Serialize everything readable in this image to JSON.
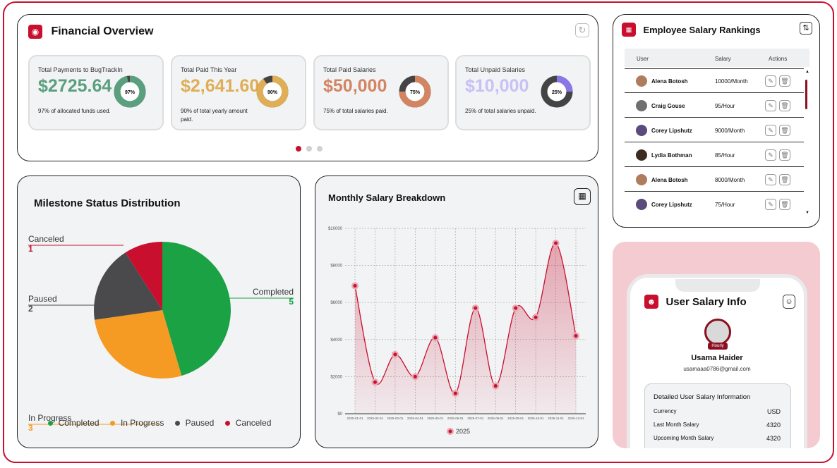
{
  "financial": {
    "title": "Financial Overview",
    "stats": [
      {
        "label": "Total Payments to BugTrackIn",
        "value": "$2725.64",
        "percent": 97,
        "percent_label": "97%",
        "desc": "97% of allocated funds used.",
        "color": "#5aa07e"
      },
      {
        "label": "Total Paid This Year",
        "value": "$2,641.60",
        "percent": 90,
        "percent_label": "90%",
        "desc": "90% of total yearly amount paid.",
        "color": "#dfae55"
      },
      {
        "label": "Total Paid Salaries",
        "value": "$50,000",
        "percent": 75,
        "percent_label": "75%",
        "desc": "75% of total salaries paid.",
        "color": "#d38563"
      },
      {
        "label": "Total Unpaid Salaries",
        "value": "$10,000",
        "percent": 25,
        "percent_label": "25%",
        "desc": "25% of total salaries unpaid.",
        "color": "#8a76e6"
      }
    ]
  },
  "rankings": {
    "title": "Employee Salary Rankings",
    "headers": {
      "user": "User",
      "salary": "Salary",
      "actions": "Actions"
    },
    "rows": [
      {
        "name": "Alena Botosh",
        "salary": "10000/Month"
      },
      {
        "name": "Craig Gouse",
        "salary": "95/Hour"
      },
      {
        "name": "Corey Lipshutz",
        "salary": "9000/Month"
      },
      {
        "name": "Lydia Bothman",
        "salary": "85/Hour"
      },
      {
        "name": "Alena Botosh",
        "salary": "8000/Month"
      },
      {
        "name": "Corey Lipshutz",
        "salary": "75/Hour"
      }
    ]
  },
  "milestone": {
    "title": "Milestone Status Distribution",
    "legend": [
      "Completed",
      "In Progress",
      "Paused",
      "Canceled"
    ]
  },
  "salary_chart_title": "Monthly Salary Breakdown",
  "chart_data": [
    {
      "type": "pie",
      "title": "Milestone Status Distribution",
      "categories": [
        "Completed",
        "In Progress",
        "Paused",
        "Canceled"
      ],
      "values": [
        5,
        3,
        2,
        1
      ],
      "colors": [
        "#1aa244",
        "#f59a23",
        "#4a4a4c",
        "#c8102e"
      ]
    },
    {
      "type": "area",
      "title": "Monthly Salary Breakdown",
      "categories": [
        "2025-01-01",
        "2025-02-01",
        "2025-03-01",
        "2025-04-01",
        "2025-05-01",
        "2025-06-01",
        "2025-07-01",
        "2025-08-01",
        "2025-09-01",
        "2025-10-01",
        "2025-11-01",
        "2025-12-01"
      ],
      "series": [
        {
          "name": "2025",
          "values": [
            6900,
            1700,
            3200,
            2000,
            4100,
            1100,
            5700,
            1500,
            5700,
            5200,
            9200,
            4200
          ]
        }
      ],
      "yticks": [
        "$0",
        "$2000",
        "$4000",
        "$6000",
        "$8000",
        "$10000"
      ],
      "ylim": [
        0,
        10000
      ],
      "color": "#c8102e"
    }
  ],
  "user_info": {
    "title": "User Salary Info",
    "name": "Usama Haider",
    "email": "usamaaa0786@gmail.com",
    "badge": "Hourly",
    "section_title": "Detailed User Salary Information",
    "rows": [
      {
        "label": "Currency",
        "value": "USD"
      },
      {
        "label": "Last Month Salary",
        "value": "4320"
      },
      {
        "label": "Upcoming Month Salary",
        "value": "4320"
      }
    ]
  }
}
